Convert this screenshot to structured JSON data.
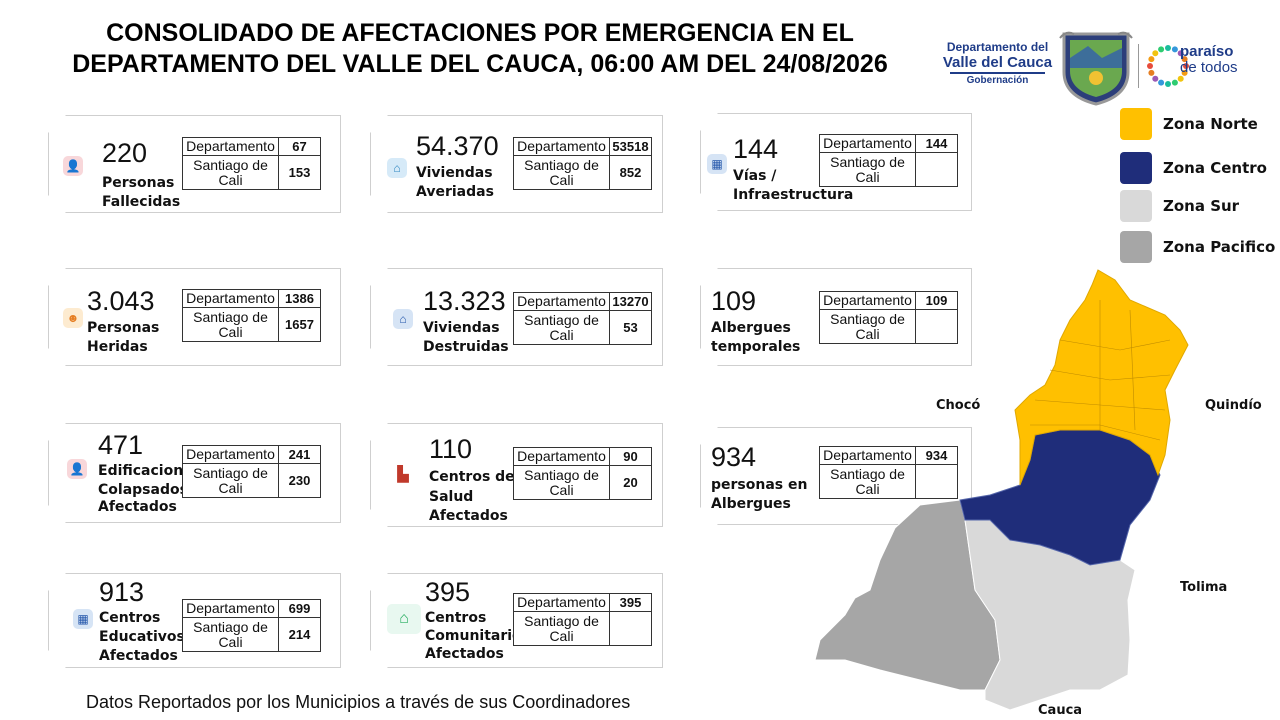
{
  "header": {
    "title_line1": "CONSOLIDADO DE AFECTACIONES POR EMERGENCIA EN EL",
    "title_line2": "DEPARTAMENTO DEL VALLE DEL CAUCA, 06:00 AM DEL 24/08/2026"
  },
  "logos": {
    "gob_line1": "Departamento del",
    "gob_line2": "Valle del Cauca",
    "gob_line3": "Gobernación",
    "paraiso_line1": "paraíso",
    "paraiso_line2": "de todos"
  },
  "table_labels": {
    "dept": "Departamento",
    "cali": "Santiago de Cali"
  },
  "cards": [
    {
      "total": "220",
      "label_1": "Personas",
      "label_2": "Fallecidas",
      "label_3": "",
      "dept": "67",
      "cali": "153",
      "icon": "person-x-icon"
    },
    {
      "total": "54.370",
      "label_1": "Viviendas",
      "label_2": "Averiadas",
      "label_3": "",
      "dept": "53518",
      "cali": "852",
      "icon": "house-icon"
    },
    {
      "total": "144",
      "label_1": "Vías /",
      "label_2": "Infraestructura",
      "label_3": "",
      "dept": "144",
      "cali": "",
      "icon": "building-icon"
    },
    {
      "total": "3.043",
      "label_1": "Personas",
      "label_2": "Heridas",
      "label_3": "",
      "dept": "1386",
      "cali": "1657",
      "icon": "injured-person-icon"
    },
    {
      "total": "13.323",
      "label_1": "Viviendas",
      "label_2": "Destruidas",
      "label_3": "",
      "dept": "13270",
      "cali": "53",
      "icon": "house-broken-icon"
    },
    {
      "total": "109",
      "label_1": "Albergues",
      "label_2": "temporales",
      "label_3": "",
      "dept": "109",
      "cali": "",
      "icon": ""
    },
    {
      "total": "471",
      "label_1": "Edificaciones",
      "label_2": "Colapsados /",
      "label_3": "Afectados",
      "dept": "241",
      "cali": "230",
      "icon": "collapsed-building-icon"
    },
    {
      "total": "110",
      "label_1": "Centros de",
      "label_2": "Salud",
      "label_3": "Afectados",
      "dept": "90",
      "cali": "20",
      "icon": "hospital-icon"
    },
    {
      "total": "934",
      "label_1": "personas en",
      "label_2": "Albergues",
      "label_3": "",
      "dept": "934",
      "cali": "",
      "icon": ""
    },
    {
      "total": "913",
      "label_1": "Centros",
      "label_2": "Educativos",
      "label_3": "Afectados",
      "dept": "699",
      "cali": "214",
      "icon": "school-icon"
    },
    {
      "total": "395",
      "label_1": "Centros",
      "label_2": "Comunitarios",
      "label_3": "Afectados",
      "dept": "395",
      "cali": "",
      "icon": "community-icon"
    }
  ],
  "legend": [
    {
      "label": "Zona Norte",
      "color": "#FFC000"
    },
    {
      "label": "Zona Centro",
      "color": "#1F2D7A"
    },
    {
      "label": "Zona Sur",
      "color": "#D9D9D9"
    },
    {
      "label": "Zona Pacifico",
      "color": "#A6A6A6"
    }
  ],
  "map_labels": {
    "choco": "Chocó",
    "quindio": "Quindío",
    "tolima": "Tolima",
    "cauca": "Cauca"
  },
  "footer": "Datos Reportados por los Municipios a través de sus Coordinadores"
}
